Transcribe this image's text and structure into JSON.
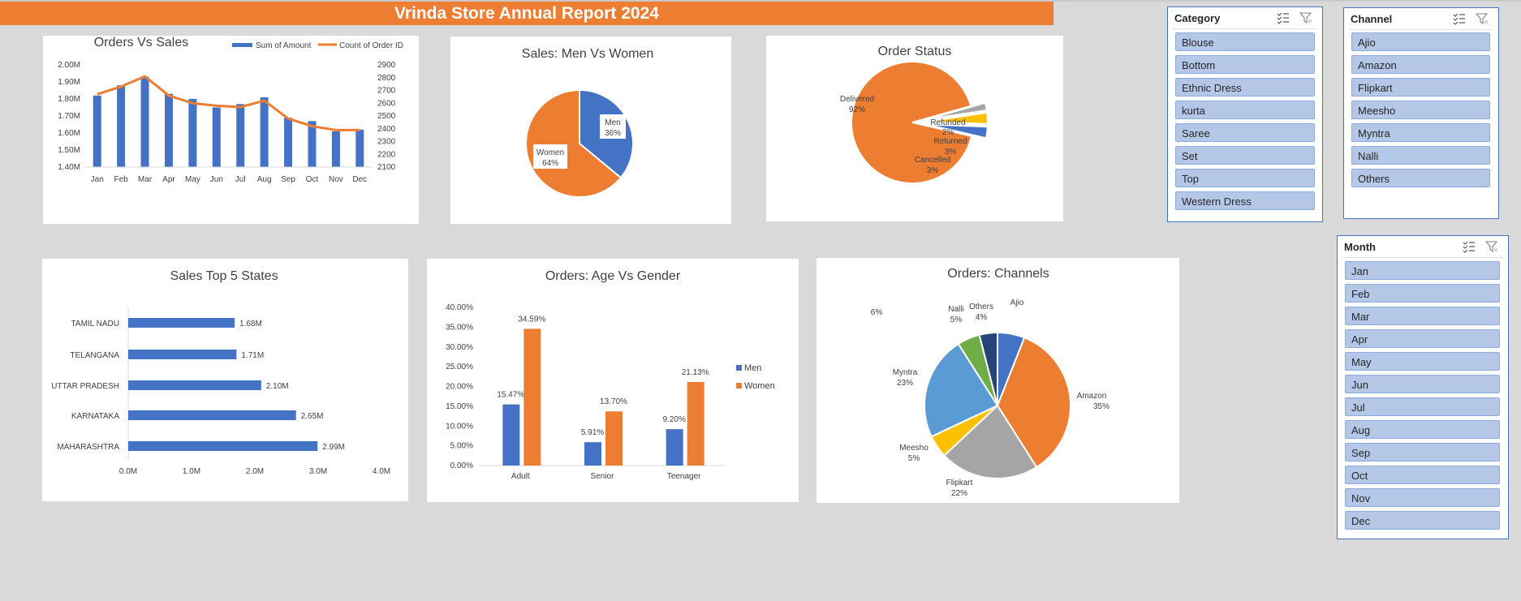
{
  "report_title": "Vrinda Store Annual Report 2024",
  "colors": {
    "blue": "#4472c4",
    "orange": "#ed7d31",
    "gray": "#a5a5a5",
    "yellow": "#ffc000",
    "lightblue": "#5b9bd5",
    "green": "#70ad47",
    "navy": "#264478"
  },
  "chart_data": [
    {
      "id": "orders_vs_sales",
      "type": "bar",
      "title": "Orders Vs Sales",
      "categories": [
        "Jan",
        "Feb",
        "Mar",
        "Apr",
        "May",
        "Jun",
        "Jul",
        "Aug",
        "Sep",
        "Oct",
        "Nov",
        "Dec"
      ],
      "series": [
        {
          "name": "Sum of Amount",
          "type": "bar",
          "axis": "left",
          "values": [
            1.82,
            1.88,
            1.93,
            1.83,
            1.8,
            1.75,
            1.77,
            1.81,
            1.69,
            1.67,
            1.61,
            1.62
          ]
        },
        {
          "name": "Count of Order ID",
          "type": "line",
          "axis": "right",
          "values": [
            2670,
            2730,
            2810,
            2660,
            2600,
            2580,
            2570,
            2620,
            2480,
            2420,
            2390,
            2390
          ]
        }
      ],
      "left_axis": {
        "min": 1.4,
        "max": 2.0,
        "step": 0.1,
        "tick_labels": [
          "1.40M",
          "1.50M",
          "1.60M",
          "1.70M",
          "1.80M",
          "1.90M",
          "2.00M"
        ]
      },
      "right_axis": {
        "min": 2100,
        "max": 2900,
        "step": 100,
        "tick_labels": [
          "2100",
          "2200",
          "2300",
          "2400",
          "2500",
          "2600",
          "2700",
          "2800",
          "2900"
        ]
      },
      "legend": "top-right"
    },
    {
      "id": "sales_men_women",
      "type": "pie",
      "title": "Sales: Men Vs Women",
      "slices": [
        {
          "label": "Men",
          "value": 36,
          "pct_label": "36%",
          "color": "#4472c4"
        },
        {
          "label": "Women",
          "value": 64,
          "pct_label": "64%",
          "color": "#ed7d31"
        }
      ]
    },
    {
      "id": "order_status",
      "type": "pie",
      "title": "Order Status",
      "slices": [
        {
          "label": "Delivered",
          "value": 92,
          "pct_label": "92%",
          "color": "#ed7d31"
        },
        {
          "label": "Refunded",
          "value": 2,
          "pct_label": "2%",
          "color": "#a5a5a5"
        },
        {
          "label": "Returned",
          "value": 3,
          "pct_label": "3%",
          "color": "#ffc000"
        },
        {
          "label": "Cancelled",
          "value": 3,
          "pct_label": "3%",
          "color": "#4472c4"
        }
      ]
    },
    {
      "id": "sales_top5_states",
      "type": "bar",
      "orientation": "horizontal",
      "title": "Sales Top 5 States",
      "categories": [
        "TAMIL NADU",
        "TELANGANA",
        "UTTAR PRADESH",
        "KARNATAKA",
        "MAHARASHTRA"
      ],
      "values": [
        1.68,
        1.71,
        2.1,
        2.65,
        2.99
      ],
      "value_labels": [
        "1.68M",
        "1.71M",
        "2.10M",
        "2.65M",
        "2.99M"
      ],
      "xlim": [
        0,
        4
      ],
      "tick_labels": [
        "0.0M",
        "1.0M",
        "2.0M",
        "3.0M",
        "4.0M"
      ]
    },
    {
      "id": "orders_age_gender",
      "type": "bar",
      "title": "Orders: Age Vs Gender",
      "categories": [
        "Adult",
        "Senior",
        "Teenager"
      ],
      "series": [
        {
          "name": "Men",
          "values": [
            15.47,
            5.91,
            9.2
          ],
          "labels": [
            "15.47%",
            "5.91%",
            "9.20%"
          ],
          "color": "#4472c4"
        },
        {
          "name": "Women",
          "values": [
            34.59,
            13.7,
            21.13
          ],
          "labels": [
            "34.59%",
            "13.70%",
            "21.13%"
          ],
          "color": "#ed7d31"
        }
      ],
      "ylim": [
        0,
        40
      ],
      "tick_labels": [
        "0.00%",
        "5.00%",
        "10.00%",
        "15.00%",
        "20.00%",
        "25.00%",
        "30.00%",
        "35.00%",
        "40.00%"
      ],
      "legend": "right"
    },
    {
      "id": "orders_channels",
      "type": "pie",
      "title": "Orders: Channels",
      "slices": [
        {
          "label": "Ajio",
          "value": 6,
          "pct_label": "6%",
          "color": "#4472c4"
        },
        {
          "label": "Amazon",
          "value": 35,
          "pct_label": "35%",
          "color": "#ed7d31"
        },
        {
          "label": "Flipkart",
          "value": 22,
          "pct_label": "22%",
          "color": "#a5a5a5"
        },
        {
          "label": "Meesho",
          "value": 5,
          "pct_label": "5%",
          "color": "#ffc000"
        },
        {
          "label": "Myntra",
          "value": 23,
          "pct_label": "23%",
          "color": "#5b9bd5"
        },
        {
          "label": "Nalli",
          "value": 5,
          "pct_label": "5%",
          "color": "#70ad47"
        },
        {
          "label": "Others",
          "value": 4,
          "pct_label": "4%",
          "color": "#264478"
        }
      ]
    }
  ],
  "slicers": {
    "category": {
      "title": "Category",
      "items": [
        "Blouse",
        "Bottom",
        "Ethnic Dress",
        "kurta",
        "Saree",
        "Set",
        "Top",
        "Western Dress"
      ]
    },
    "channel": {
      "title": "Channel",
      "items": [
        "Ajio",
        "Amazon",
        "Flipkart",
        "Meesho",
        "Myntra",
        "Nalli",
        "Others"
      ]
    },
    "month": {
      "title": "Month",
      "items": [
        "Jan",
        "Feb",
        "Mar",
        "Apr",
        "May",
        "Jun",
        "Jul",
        "Aug",
        "Sep",
        "Oct",
        "Nov",
        "Dec"
      ]
    }
  }
}
